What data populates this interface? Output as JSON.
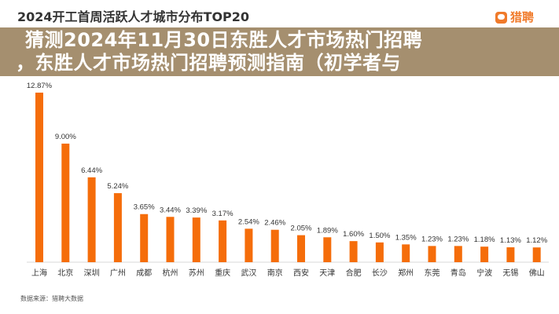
{
  "chart_data": {
    "type": "bar",
    "title": "2024开工首周活跃人才城市分布TOP20",
    "categories": [
      "上海",
      "北京",
      "深圳",
      "广州",
      "成都",
      "杭州",
      "苏州",
      "重庆",
      "武汉",
      "南京",
      "西安",
      "天津",
      "合肥",
      "长沙",
      "郑州",
      "东莞",
      "青岛",
      "宁波",
      "无锡",
      "佛山"
    ],
    "values": [
      12.87,
      9.0,
      6.44,
      5.24,
      3.65,
      3.44,
      3.39,
      3.17,
      2.54,
      2.46,
      2.05,
      1.89,
      1.6,
      1.5,
      1.35,
      1.23,
      1.23,
      1.18,
      1.13,
      1.12
    ],
    "labels": [
      "12.87%",
      "9.00%",
      "6.44%",
      "5.24%",
      "3.65%",
      "3.44%",
      "3.39%",
      "3.17%",
      "2.54%",
      "2.46%",
      "2.05%",
      "1.89%",
      "1.60%",
      "1.50%",
      "1.35%",
      "1.23%",
      "1.23%",
      "1.18%",
      "1.13%",
      "1.12%"
    ],
    "ylim": [
      0,
      12.87
    ],
    "grid": false,
    "bar_color": "#f56d0a",
    "source": "数据来源：猎聘大数据"
  },
  "logo": {
    "text": "猎聘",
    "color": "#f07a2a"
  },
  "overlay": {
    "line1": "猜测2024年11月30日东胜人才市场热门招聘",
    "line2": "，东胜人才市场热门招聘预测指南（初学者与"
  }
}
